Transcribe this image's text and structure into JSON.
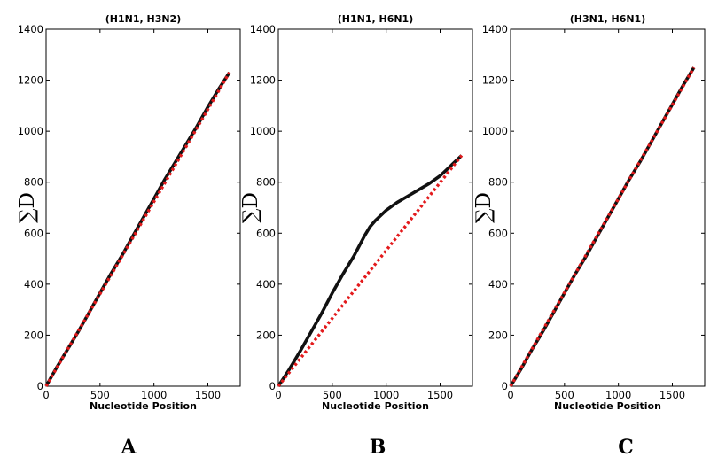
{
  "chart_data": [
    {
      "type": "line",
      "panel": "A",
      "title": "(H1N1, H3N2)",
      "xlabel": "Nucleotide Position",
      "ylabel": "∑D",
      "xlim": [
        0,
        1800
      ],
      "ylim": [
        0,
        1400
      ],
      "xticks": [
        0,
        500,
        1000,
        1500
      ],
      "yticks": [
        0,
        200,
        400,
        600,
        800,
        1000,
        1200,
        1400
      ],
      "series": [
        {
          "style": "solid",
          "color": "#111111",
          "x": [
            0,
            100,
            200,
            300,
            400,
            500,
            600,
            700,
            800,
            900,
            1000,
            1100,
            1200,
            1300,
            1400,
            1500,
            1600,
            1700
          ],
          "y": [
            0,
            75,
            145,
            215,
            290,
            365,
            440,
            510,
            585,
            660,
            735,
            810,
            880,
            950,
            1020,
            1095,
            1165,
            1230
          ]
        },
        {
          "style": "dotted",
          "color": "#e31a1c",
          "x": [
            0,
            1700
          ],
          "y": [
            0,
            1230
          ]
        }
      ]
    },
    {
      "type": "line",
      "panel": "B",
      "title": "(H1N1, H6N1)",
      "xlabel": "Nucleotide Position",
      "ylabel": "∑D",
      "xlim": [
        0,
        1800
      ],
      "ylim": [
        0,
        1400
      ],
      "xticks": [
        0,
        500,
        1000,
        1500
      ],
      "yticks": [
        0,
        200,
        400,
        600,
        800,
        1000,
        1200,
        1400
      ],
      "series": [
        {
          "style": "solid",
          "color": "#111111",
          "x": [
            0,
            100,
            200,
            300,
            400,
            500,
            600,
            700,
            800,
            850,
            900,
            1000,
            1100,
            1200,
            1300,
            1400,
            1500,
            1600,
            1700
          ],
          "y": [
            0,
            65,
            135,
            210,
            285,
            365,
            440,
            510,
            590,
            625,
            650,
            690,
            720,
            745,
            770,
            795,
            825,
            865,
            905
          ]
        },
        {
          "style": "dotted",
          "color": "#e31a1c",
          "x": [
            0,
            1700
          ],
          "y": [
            0,
            905
          ]
        }
      ]
    },
    {
      "type": "line",
      "panel": "C",
      "title": "(H3N1, H6N1)",
      "xlabel": "Nucleotide Position",
      "ylabel": "∑D",
      "xlim": [
        0,
        1800
      ],
      "ylim": [
        0,
        1400
      ],
      "xticks": [
        0,
        500,
        1000,
        1500
      ],
      "yticks": [
        0,
        200,
        400,
        600,
        800,
        1000,
        1200,
        1400
      ],
      "series": [
        {
          "style": "solid",
          "color": "#111111",
          "x": [
            0,
            100,
            200,
            300,
            400,
            500,
            600,
            700,
            800,
            900,
            1000,
            1100,
            1200,
            1300,
            1400,
            1500,
            1600,
            1700
          ],
          "y": [
            0,
            70,
            145,
            215,
            290,
            365,
            440,
            510,
            585,
            660,
            735,
            810,
            880,
            955,
            1030,
            1105,
            1180,
            1250
          ]
        },
        {
          "style": "dotted",
          "color": "#e31a1c",
          "x": [
            0,
            1700
          ],
          "y": [
            0,
            1250
          ]
        }
      ]
    }
  ]
}
